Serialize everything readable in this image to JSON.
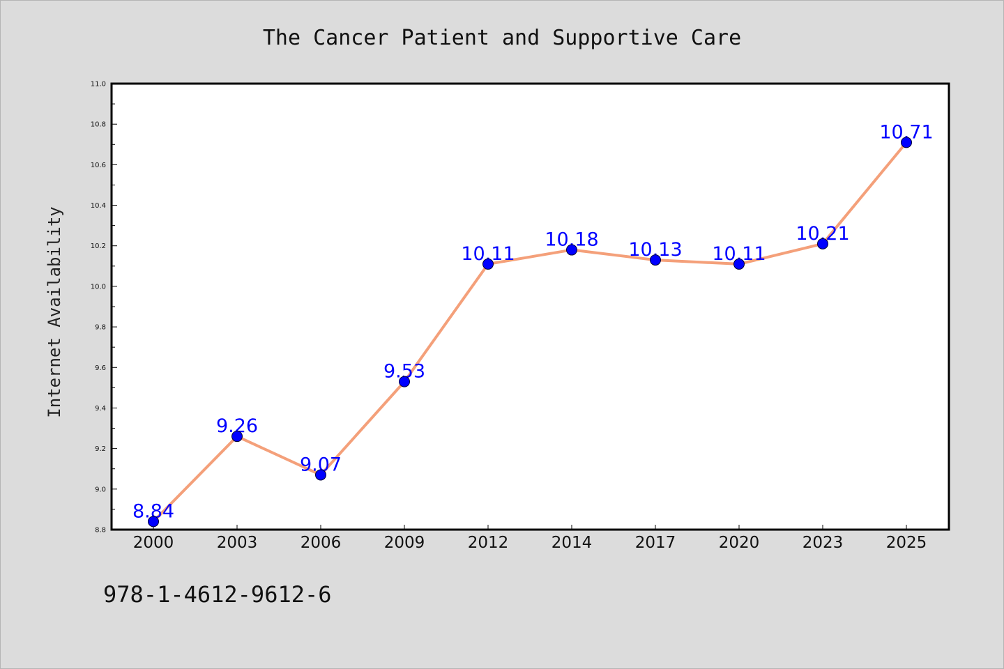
{
  "chart_data": {
    "type": "line",
    "title": "The Cancer Patient and Supportive Care",
    "xlabel": "",
    "ylabel": "Internet Availability",
    "categories": [
      "2000",
      "2003",
      "2006",
      "2009",
      "2012",
      "2014",
      "2017",
      "2020",
      "2023",
      "2025"
    ],
    "series": [
      {
        "values": [
          8.84,
          9.26,
          9.07,
          9.53,
          10.11,
          10.18,
          10.13,
          10.11,
          10.21,
          10.71
        ],
        "labels": [
          "8.84",
          "9.26",
          "9.07",
          "9.53",
          "10.11",
          "10.18",
          "10.13",
          "10.11",
          "10.21",
          "10.71"
        ],
        "line_color": "#f4a07a",
        "marker_color": "#0000ff"
      }
    ],
    "ylim": [
      8.8,
      11.0
    ],
    "yticks": [
      "8.8",
      "9.0",
      "9.2",
      "9.4",
      "9.6",
      "9.8",
      "10.0",
      "10.2",
      "10.4",
      "10.6",
      "10.8",
      "11.0"
    ],
    "grid": false,
    "legend": "none",
    "plot_background": "#ffffff",
    "figure_background": "#dcdcdc"
  },
  "footer": {
    "isbn": "978-1-4612-9612-6"
  }
}
